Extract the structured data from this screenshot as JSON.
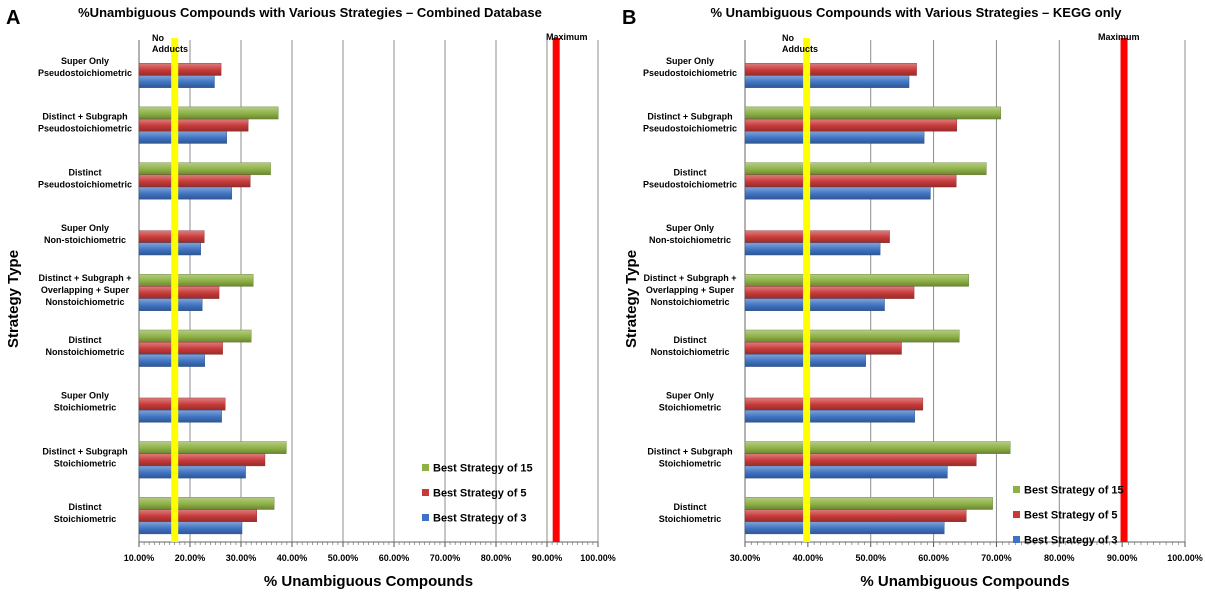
{
  "chart_data": [
    {
      "type": "bar",
      "orientation": "horizontal",
      "panel_label": "A",
      "title": "%Unambiguous Compounds with Various Strategies – Combined Database",
      "xlabel": "% Unambiguous Compounds",
      "ylabel": "Strategy Type",
      "xlim": [
        0.1,
        1.0
      ],
      "xticks": [
        "10.00%",
        "20.00%",
        "30.00%",
        "40.00%",
        "50.00%",
        "60.00%",
        "70.00%",
        "80.00%",
        "90.00%",
        "100.00%"
      ],
      "grid": true,
      "legend_position": "bottom-right",
      "categories": [
        [
          "Super Only",
          "Pseudostoichiometric"
        ],
        [
          "Distinct + Subgraph",
          "Pseudostoichiometric"
        ],
        [
          "Distinct",
          "Pseudostoichiometric"
        ],
        [
          "Super Only",
          "Non-stoichiometric"
        ],
        [
          "Distinct + Subgraph +",
          "Overlapping + Super",
          "Nonstoichiometric"
        ],
        [
          "Distinct",
          "Nonstoichiometric"
        ],
        [
          "Super Only",
          "Stoichiometric"
        ],
        [
          "Distinct + Subgraph",
          "Stoichiometric"
        ],
        [
          "Distinct",
          "Stoichiometric"
        ]
      ],
      "series": [
        {
          "name": "Best Strategy of 15",
          "color": "#8db145",
          "values": [
            null,
            0.373,
            0.358,
            null,
            0.324,
            0.32,
            null,
            0.389,
            0.365
          ]
        },
        {
          "name": "Best Strategy of 5",
          "color": "#c73a39",
          "values": [
            0.261,
            0.314,
            0.318,
            0.228,
            0.257,
            0.264,
            0.269,
            0.347,
            0.331
          ]
        },
        {
          "name": "Best Strategy of 3",
          "color": "#3f73c2",
          "values": [
            0.248,
            0.272,
            0.282,
            0.221,
            0.224,
            0.229,
            0.262,
            0.309,
            0.302
          ]
        }
      ],
      "reference_lines": [
        {
          "label": "No Adducts",
          "value": 0.17,
          "color": "#ffff00"
        },
        {
          "label": "Maximum",
          "value": 0.918,
          "color": "#ff0000"
        }
      ]
    },
    {
      "type": "bar",
      "orientation": "horizontal",
      "panel_label": "B",
      "title": "% Unambiguous Compounds with Various Strategies – KEGG only",
      "xlabel": "% Unambiguous Compounds",
      "ylabel": "Strategy Type",
      "xlim": [
        0.3,
        1.0
      ],
      "xticks": [
        "30.00%",
        "40.00%",
        "50.00%",
        "60.00%",
        "70.00%",
        "80.00%",
        "90.00%",
        "100.00%"
      ],
      "grid": true,
      "legend_position": "bottom-right",
      "categories": [
        [
          "Super Only",
          "Pseudostoichiometric"
        ],
        [
          "Distinct + Subgraph",
          "Pseudostoichiometric"
        ],
        [
          "Distinct",
          "Pseudostoichiometric"
        ],
        [
          "Super Only",
          "Non-stoichiometric"
        ],
        [
          "Distinct + Subgraph +",
          "Overlapping + Super",
          "Nonstoichiometric"
        ],
        [
          "Distinct",
          "Nonstoichiometric"
        ],
        [
          "Super Only",
          "Stoichiometric"
        ],
        [
          "Distinct + Subgraph",
          "Stoichiometric"
        ],
        [
          "Distinct",
          "Stoichiometric"
        ]
      ],
      "series": [
        {
          "name": "Best Strategy of 15",
          "color": "#8db145",
          "values": [
            null,
            0.707,
            0.684,
            null,
            0.656,
            0.641,
            null,
            0.722,
            0.694
          ]
        },
        {
          "name": "Best Strategy of 5",
          "color": "#c73a39",
          "values": [
            0.573,
            0.637,
            0.636,
            0.53,
            0.569,
            0.549,
            0.583,
            0.668,
            0.652
          ]
        },
        {
          "name": "Best Strategy of 3",
          "color": "#3f73c2",
          "values": [
            0.561,
            0.585,
            0.595,
            0.515,
            0.522,
            0.492,
            0.57,
            0.622,
            0.617
          ]
        }
      ],
      "reference_lines": [
        {
          "label": "No Adducts",
          "value": 0.398,
          "color": "#ffff00"
        },
        {
          "label": "Maximum",
          "value": 0.903,
          "color": "#ff0000"
        }
      ]
    }
  ]
}
